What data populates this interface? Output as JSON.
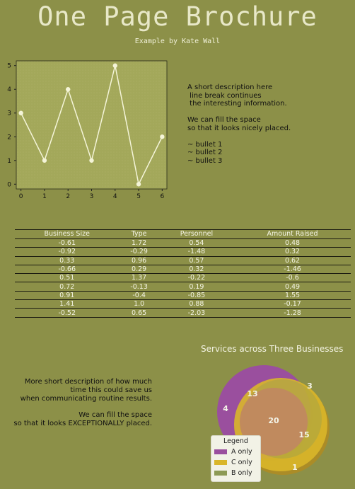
{
  "header": {
    "title": "One Page Brochure",
    "subtitle": "Example by Kate Wall"
  },
  "description_top": "A short description here\n line break continues\n the interesting information.\n\nWe can fill the space\nso that it looks nicely placed.\n\n~ bullet 1\n~ bullet 2\n~ bullet 3",
  "chart_data": [
    {
      "type": "line",
      "x": [
        0,
        1,
        2,
        3,
        4,
        5,
        6
      ],
      "series": [
        {
          "values": [
            3,
            1,
            4,
            1,
            5,
            0,
            2
          ]
        }
      ],
      "xlim": [
        -0.2,
        6.2
      ],
      "ylim": [
        -0.2,
        5.2
      ],
      "xticks": [
        0,
        1,
        2,
        3,
        4,
        5,
        6
      ],
      "yticks": [
        0,
        1,
        2,
        3,
        4,
        5
      ],
      "title": "",
      "xlabel": "",
      "ylabel": "",
      "grid": false,
      "line_color": "#f4f4d8",
      "plot_bg": "#a3a85a"
    },
    {
      "type": "venn",
      "title": "Services across Three Businesses",
      "sets": [
        "A",
        "B",
        "C"
      ],
      "regions": {
        "A only": 4,
        "A∩B": 13,
        "B only": 3,
        "A∩B∩C": 20,
        "B∩C": 15,
        "C only": 1
      },
      "legend": [
        {
          "label": "A only",
          "color": "#9a4f9e"
        },
        {
          "label": "C only",
          "color": "#d9b62a"
        },
        {
          "label": "B only",
          "color": "#8d9a55"
        }
      ],
      "legend_title": "Legend",
      "legend_placement": "lower-left"
    }
  ],
  "table": {
    "headers": [
      "Business Size",
      "Type",
      "Personnel",
      "Amount Raised"
    ],
    "rows": [
      [
        "-0.61",
        "1.72",
        "0.54",
        "0.48"
      ],
      [
        "-0.92",
        "-0.29",
        "-1.48",
        "0.32"
      ],
      [
        "0.33",
        "0.96",
        "0.57",
        "0.62"
      ],
      [
        "-0.66",
        "0.29",
        "0.32",
        "-1.46"
      ],
      [
        "0.51",
        "1.37",
        "-0.22",
        "-0.6"
      ],
      [
        "0.72",
        "-0.13",
        "0.19",
        "0.49"
      ],
      [
        "0.91",
        "-0.4",
        "-0.85",
        "1.55"
      ],
      [
        "1.41",
        "1.0",
        "0.88",
        "-0.17"
      ],
      [
        "-0.52",
        "0.65",
        "-2.03",
        "-1.28"
      ]
    ]
  },
  "description_bottom": "More short description of how much\ntime this could save us\nwhen communicating routine results.\n\nWe can fill the space\nso that it looks EXCEPTIONALLY placed."
}
